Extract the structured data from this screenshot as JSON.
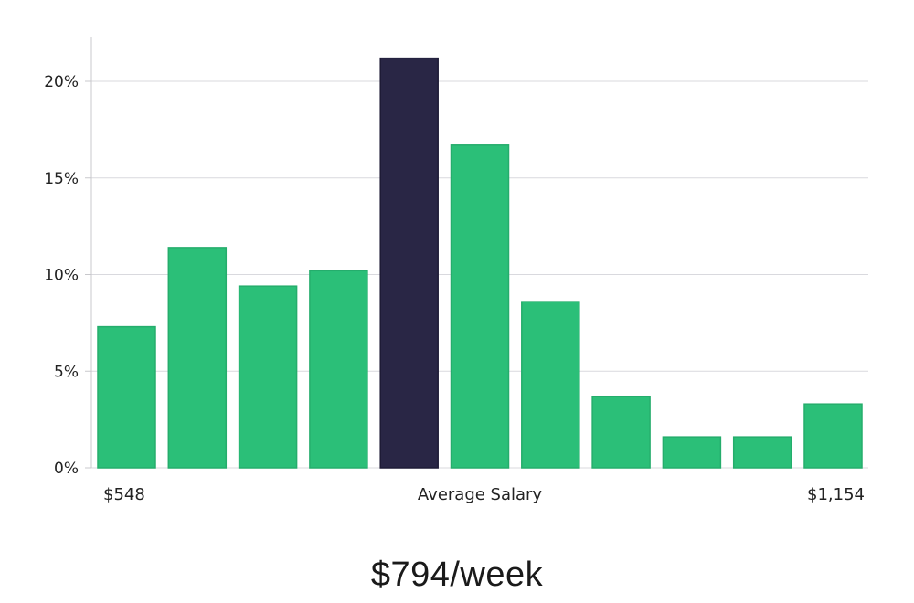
{
  "chart_data": {
    "type": "bar",
    "values": [
      7.3,
      11.4,
      9.4,
      10.2,
      21.2,
      16.7,
      8.6,
      3.7,
      1.6,
      1.6,
      3.3
    ],
    "highlight_index": 4,
    "y_ticks": [
      "0%",
      "5%",
      "10%",
      "15%",
      "20%"
    ],
    "y_tick_values": [
      0,
      5,
      10,
      15,
      20
    ],
    "ylim": [
      0,
      22.5
    ],
    "x_labels": {
      "left": "$548",
      "center": "Average Salary",
      "right": "$1,154"
    },
    "colors": {
      "bar": "#2bbf78",
      "bar_stroke": "#25ad6c",
      "highlight": "#292645",
      "grid": "#d9d9de",
      "axis": "#c8c8cc"
    },
    "grid": true
  },
  "headline": "$794/week"
}
